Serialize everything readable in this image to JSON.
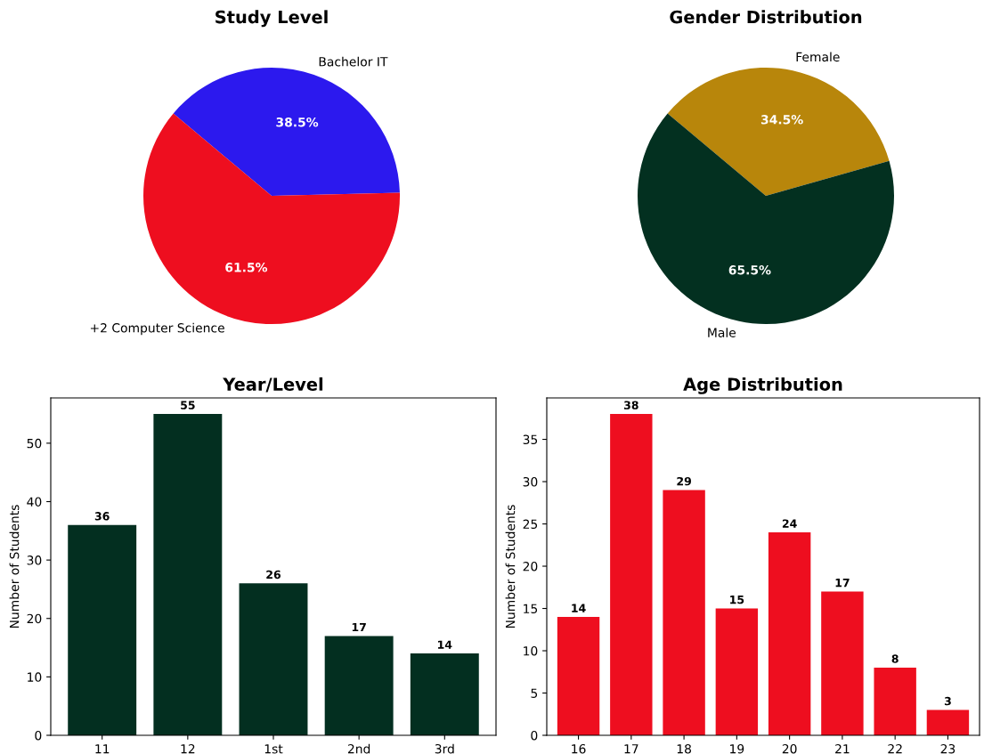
{
  "chart_data": [
    {
      "type": "pie",
      "title": "Study Level",
      "categories": [
        "Bachelor IT",
        "+2 Computer Science"
      ],
      "values": [
        38.5,
        61.5
      ],
      "colors": [
        "#2c19ee",
        "#ee0e1f"
      ],
      "value_labels": [
        "38.5%",
        "61.5%"
      ]
    },
    {
      "type": "pie",
      "title": "Gender Distribution",
      "categories": [
        "Female",
        "Male"
      ],
      "values": [
        34.5,
        65.5
      ],
      "colors": [
        "#b8860b",
        "#033020"
      ],
      "value_labels": [
        "34.5%",
        "65.5%"
      ]
    },
    {
      "type": "bar",
      "title": "Year/Level",
      "ylabel": "Number of Students",
      "categories": [
        "11",
        "12",
        "1st",
        "2nd",
        "3rd"
      ],
      "values": [
        36,
        55,
        26,
        17,
        14
      ],
      "color": "#032f20",
      "ylim": [
        0,
        57.75
      ],
      "yticks": [
        0,
        10,
        20,
        30,
        40,
        50
      ],
      "data_labels": true
    },
    {
      "type": "bar",
      "title": "Age Distribution",
      "ylabel": "Number of Students",
      "categories": [
        "16",
        "17",
        "18",
        "19",
        "20",
        "21",
        "22",
        "23"
      ],
      "values": [
        14,
        38,
        29,
        15,
        24,
        17,
        8,
        3
      ],
      "color": "#ee0e1f",
      "ylim": [
        0,
        39.9
      ],
      "yticks": [
        0,
        5,
        10,
        15,
        20,
        25,
        30,
        35
      ],
      "data_labels": true
    }
  ]
}
